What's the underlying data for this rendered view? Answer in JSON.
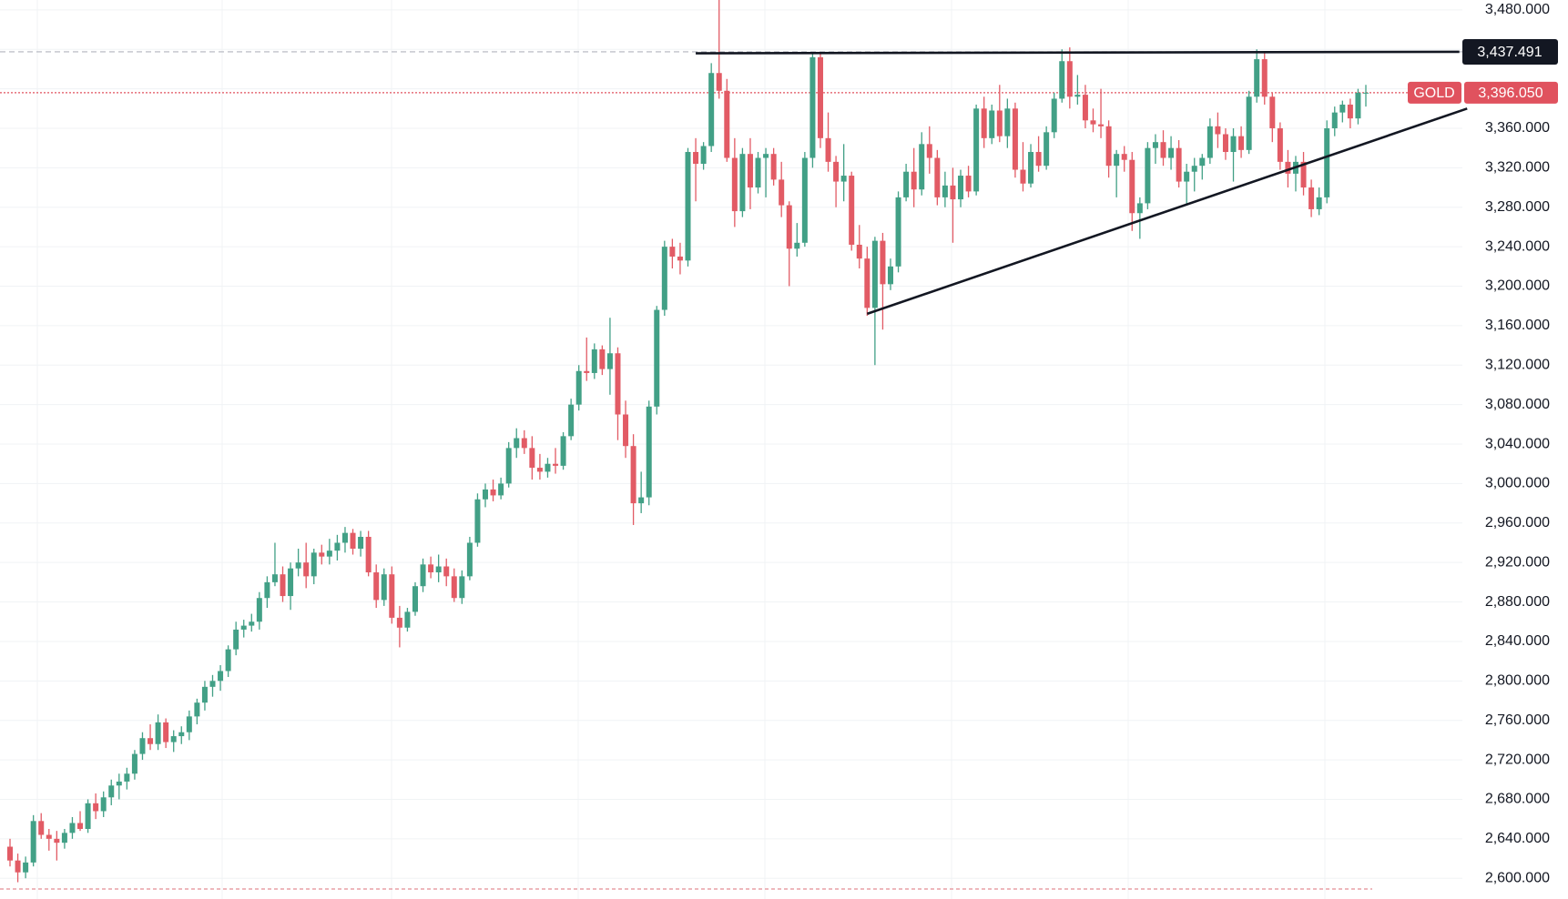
{
  "chart_data": {
    "type": "candlestick",
    "up_color": "#42a086",
    "down_color": "#e25b65",
    "ylim": [
      2579,
      3490
    ],
    "grid": true,
    "yticks": [
      {
        "value": 3480,
        "label": "3,480.000"
      },
      {
        "value": 3440,
        "label": "3,440.000"
      },
      {
        "value": 3400,
        "label": "3,400.000"
      },
      {
        "value": 3360,
        "label": "3,360.000"
      },
      {
        "value": 3320,
        "label": "3,320.000"
      },
      {
        "value": 3280,
        "label": "3,280.000"
      },
      {
        "value": 3240,
        "label": "3,240.000"
      },
      {
        "value": 3200,
        "label": "3,200.000"
      },
      {
        "value": 3160,
        "label": "3,160.000"
      },
      {
        "value": 3120,
        "label": "3,120.000"
      },
      {
        "value": 3080,
        "label": "3,080.000"
      },
      {
        "value": 3040,
        "label": "3,040.000"
      },
      {
        "value": 3000,
        "label": "3,000.000"
      },
      {
        "value": 2960,
        "label": "2,960.000"
      },
      {
        "value": 2920,
        "label": "2,920.000"
      },
      {
        "value": 2880,
        "label": "2,880.000"
      },
      {
        "value": 2840,
        "label": "2,840.000"
      },
      {
        "value": 2800,
        "label": "2,800.000"
      },
      {
        "value": 2760,
        "label": "2,760.000"
      },
      {
        "value": 2720,
        "label": "2,720.000"
      },
      {
        "value": 2680,
        "label": "2,680.000"
      },
      {
        "value": 2640,
        "label": "2,640.000"
      },
      {
        "value": 2600,
        "label": "2,600.000"
      }
    ],
    "price_line": {
      "name": "GOLD",
      "value": 3396.05,
      "label": "3,396.050",
      "color": "#e0525e"
    },
    "level": {
      "value": 3437.491,
      "label": "3,437.491"
    },
    "trendlines": [
      {
        "points": [
          [
            88,
            3436
          ],
          [
            186,
            3437.491
          ]
        ]
      },
      {
        "points": [
          [
            110,
            3172
          ],
          [
            187,
            3380
          ]
        ]
      }
    ],
    "candles": [
      [
        2632,
        2640,
        2612,
        2618
      ],
      [
        2618,
        2625,
        2596,
        2606
      ],
      [
        2606,
        2622,
        2600,
        2616
      ],
      [
        2616,
        2664,
        2612,
        2658
      ],
      [
        2658,
        2666,
        2640,
        2644
      ],
      [
        2644,
        2650,
        2628,
        2640
      ],
      [
        2640,
        2648,
        2618,
        2636
      ],
      [
        2636,
        2650,
        2630,
        2646
      ],
      [
        2646,
        2662,
        2640,
        2656
      ],
      [
        2656,
        2668,
        2648,
        2650
      ],
      [
        2650,
        2680,
        2646,
        2676
      ],
      [
        2676,
        2686,
        2660,
        2668
      ],
      [
        2668,
        2688,
        2662,
        2682
      ],
      [
        2682,
        2700,
        2674,
        2694
      ],
      [
        2694,
        2706,
        2680,
        2698
      ],
      [
        2698,
        2712,
        2690,
        2706
      ],
      [
        2706,
        2730,
        2700,
        2726
      ],
      [
        2726,
        2748,
        2720,
        2742
      ],
      [
        2742,
        2756,
        2730,
        2736
      ],
      [
        2736,
        2766,
        2730,
        2758
      ],
      [
        2758,
        2762,
        2732,
        2738
      ],
      [
        2738,
        2750,
        2728,
        2744
      ],
      [
        2744,
        2754,
        2736,
        2748
      ],
      [
        2748,
        2770,
        2740,
        2764
      ],
      [
        2764,
        2782,
        2756,
        2778
      ],
      [
        2778,
        2800,
        2770,
        2794
      ],
      [
        2794,
        2806,
        2784,
        2800
      ],
      [
        2800,
        2816,
        2790,
        2810
      ],
      [
        2810,
        2836,
        2804,
        2832
      ],
      [
        2832,
        2860,
        2826,
        2852
      ],
      [
        2852,
        2862,
        2844,
        2856
      ],
      [
        2856,
        2868,
        2850,
        2860
      ],
      [
        2860,
        2890,
        2852,
        2884
      ],
      [
        2884,
        2906,
        2874,
        2900
      ],
      [
        2900,
        2940,
        2896,
        2908
      ],
      [
        2908,
        2916,
        2880,
        2886
      ],
      [
        2886,
        2920,
        2872,
        2914
      ],
      [
        2914,
        2934,
        2906,
        2920
      ],
      [
        2920,
        2940,
        2894,
        2906
      ],
      [
        2906,
        2934,
        2898,
        2930
      ],
      [
        2930,
        2938,
        2918,
        2926
      ],
      [
        2926,
        2944,
        2918,
        2932
      ],
      [
        2932,
        2948,
        2922,
        2940
      ],
      [
        2940,
        2956,
        2930,
        2950
      ],
      [
        2950,
        2954,
        2928,
        2934
      ],
      [
        2934,
        2952,
        2926,
        2946
      ],
      [
        2946,
        2952,
        2906,
        2910
      ],
      [
        2910,
        2918,
        2874,
        2882
      ],
      [
        2882,
        2914,
        2876,
        2908
      ],
      [
        2908,
        2916,
        2858,
        2864
      ],
      [
        2864,
        2876,
        2834,
        2854
      ],
      [
        2854,
        2874,
        2850,
        2870
      ],
      [
        2870,
        2900,
        2866,
        2896
      ],
      [
        2896,
        2924,
        2890,
        2918
      ],
      [
        2918,
        2926,
        2904,
        2910
      ],
      [
        2910,
        2928,
        2900,
        2916
      ],
      [
        2916,
        2924,
        2896,
        2906
      ],
      [
        2906,
        2914,
        2880,
        2884
      ],
      [
        2884,
        2912,
        2878,
        2906
      ],
      [
        2906,
        2946,
        2902,
        2940
      ],
      [
        2940,
        2990,
        2936,
        2984
      ],
      [
        2984,
        3000,
        2976,
        2994
      ],
      [
        2994,
        3004,
        2982,
        2988
      ],
      [
        2988,
        3006,
        2984,
        3000
      ],
      [
        3000,
        3042,
        2996,
        3036
      ],
      [
        3036,
        3056,
        3026,
        3046
      ],
      [
        3046,
        3054,
        3030,
        3036
      ],
      [
        3036,
        3048,
        3004,
        3016
      ],
      [
        3016,
        3030,
        3004,
        3012
      ],
      [
        3012,
        3026,
        3006,
        3020
      ],
      [
        3020,
        3036,
        3010,
        3018
      ],
      [
        3018,
        3052,
        3014,
        3048
      ],
      [
        3048,
        3086,
        3044,
        3080
      ],
      [
        3080,
        3120,
        3074,
        3114
      ],
      [
        3114,
        3148,
        3104,
        3112
      ],
      [
        3112,
        3142,
        3106,
        3136
      ],
      [
        3136,
        3140,
        3110,
        3116
      ],
      [
        3116,
        3168,
        3090,
        3132
      ],
      [
        3132,
        3138,
        3044,
        3070
      ],
      [
        3070,
        3084,
        3026,
        3038
      ],
      [
        3038,
        3050,
        2958,
        2980
      ],
      [
        2980,
        3012,
        2970,
        2986
      ],
      [
        2986,
        3084,
        2978,
        3078
      ],
      [
        3078,
        3180,
        3070,
        3176
      ],
      [
        3176,
        3246,
        3170,
        3240
      ],
      [
        3240,
        3248,
        3218,
        3230
      ],
      [
        3230,
        3244,
        3212,
        3226
      ],
      [
        3226,
        3340,
        3220,
        3336
      ],
      [
        3336,
        3350,
        3286,
        3324
      ],
      [
        3324,
        3346,
        3318,
        3342
      ],
      [
        3342,
        3426,
        3336,
        3416
      ],
      [
        3416,
        3490,
        3390,
        3398
      ],
      [
        3398,
        3410,
        3326,
        3330
      ],
      [
        3330,
        3350,
        3260,
        3276
      ],
      [
        3276,
        3340,
        3270,
        3334
      ],
      [
        3334,
        3350,
        3278,
        3300
      ],
      [
        3300,
        3336,
        3294,
        3330
      ],
      [
        3330,
        3340,
        3290,
        3334
      ],
      [
        3334,
        3340,
        3302,
        3308
      ],
      [
        3308,
        3326,
        3270,
        3282
      ],
      [
        3282,
        3286,
        3200,
        3238
      ],
      [
        3238,
        3264,
        3230,
        3244
      ],
      [
        3244,
        3336,
        3240,
        3330
      ],
      [
        3330,
        3436,
        3320,
        3432
      ],
      [
        3432,
        3436,
        3340,
        3350
      ],
      [
        3350,
        3376,
        3316,
        3326
      ],
      [
        3326,
        3332,
        3280,
        3306
      ],
      [
        3306,
        3344,
        3286,
        3312
      ],
      [
        3312,
        3316,
        3236,
        3242
      ],
      [
        3242,
        3262,
        3218,
        3228
      ],
      [
        3228,
        3240,
        3170,
        3178
      ],
      [
        3178,
        3250,
        3120,
        3246
      ],
      [
        3246,
        3254,
        3156,
        3202
      ],
      [
        3202,
        3228,
        3196,
        3220
      ],
      [
        3220,
        3296,
        3214,
        3290
      ],
      [
        3290,
        3324,
        3286,
        3316
      ],
      [
        3316,
        3340,
        3280,
        3298
      ],
      [
        3298,
        3356,
        3292,
        3344
      ],
      [
        3344,
        3362,
        3314,
        3330
      ],
      [
        3330,
        3338,
        3282,
        3290
      ],
      [
        3290,
        3316,
        3280,
        3302
      ],
      [
        3302,
        3320,
        3244,
        3288
      ],
      [
        3288,
        3318,
        3280,
        3312
      ],
      [
        3312,
        3322,
        3290,
        3296
      ],
      [
        3296,
        3384,
        3292,
        3380
      ],
      [
        3380,
        3392,
        3340,
        3350
      ],
      [
        3350,
        3384,
        3344,
        3378
      ],
      [
        3378,
        3404,
        3346,
        3352
      ],
      [
        3352,
        3390,
        3340,
        3380
      ],
      [
        3380,
        3386,
        3310,
        3318
      ],
      [
        3318,
        3346,
        3296,
        3304
      ],
      [
        3304,
        3344,
        3300,
        3336
      ],
      [
        3336,
        3352,
        3316,
        3322
      ],
      [
        3322,
        3362,
        3318,
        3356
      ],
      [
        3356,
        3396,
        3350,
        3390
      ],
      [
        3390,
        3440,
        3386,
        3428
      ],
      [
        3428,
        3442,
        3380,
        3392
      ],
      [
        3392,
        3414,
        3384,
        3394
      ],
      [
        3394,
        3404,
        3360,
        3368
      ],
      [
        3368,
        3380,
        3356,
        3364
      ],
      [
        3364,
        3400,
        3350,
        3362
      ],
      [
        3362,
        3368,
        3310,
        3322
      ],
      [
        3322,
        3338,
        3290,
        3334
      ],
      [
        3334,
        3342,
        3316,
        3328
      ],
      [
        3328,
        3336,
        3256,
        3274
      ],
      [
        3274,
        3290,
        3248,
        3284
      ],
      [
        3284,
        3346,
        3278,
        3340
      ],
      [
        3340,
        3354,
        3324,
        3346
      ],
      [
        3346,
        3358,
        3322,
        3330
      ],
      [
        3330,
        3352,
        3318,
        3340
      ],
      [
        3340,
        3348,
        3300,
        3306
      ],
      [
        3306,
        3324,
        3282,
        3316
      ],
      [
        3316,
        3330,
        3296,
        3322
      ],
      [
        3322,
        3334,
        3308,
        3330
      ],
      [
        3330,
        3370,
        3324,
        3362
      ],
      [
        3362,
        3376,
        3340,
        3354
      ],
      [
        3354,
        3360,
        3328,
        3336
      ],
      [
        3336,
        3360,
        3306,
        3352
      ],
      [
        3352,
        3362,
        3330,
        3338
      ],
      [
        3338,
        3398,
        3334,
        3392
      ],
      [
        3392,
        3440,
        3386,
        3430
      ],
      [
        3430,
        3436,
        3384,
        3392
      ],
      [
        3392,
        3396,
        3346,
        3360
      ],
      [
        3360,
        3366,
        3318,
        3326
      ],
      [
        3326,
        3338,
        3300,
        3314
      ],
      [
        3314,
        3332,
        3296,
        3326
      ],
      [
        3326,
        3336,
        3292,
        3300
      ],
      [
        3300,
        3308,
        3270,
        3278
      ],
      [
        3278,
        3300,
        3272,
        3290
      ],
      [
        3290,
        3368,
        3284,
        3360
      ],
      [
        3360,
        3382,
        3352,
        3376
      ],
      [
        3376,
        3388,
        3366,
        3384
      ],
      [
        3384,
        3390,
        3360,
        3370
      ],
      [
        3370,
        3400,
        3364,
        3396
      ],
      [
        3396,
        3404,
        3382,
        3396.05
      ]
    ]
  }
}
